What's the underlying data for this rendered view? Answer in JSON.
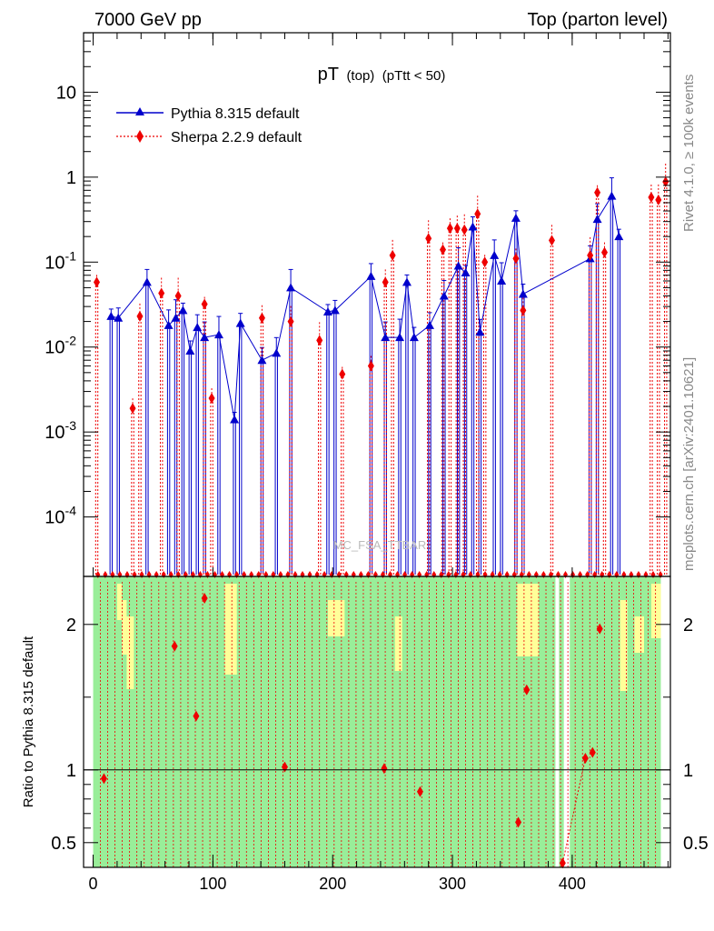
{
  "chart_data": {
    "type": "line",
    "header_left": "7000 GeV pp",
    "header_right": "Top (parton level)",
    "title_main": "pT",
    "title_sub": "(top)",
    "title_cut": "(pTtt < 50)",
    "watermark": "MC_FSA_TTBAR",
    "side_top": "Rivet 4.1.0, ≥ 100k events",
    "side_bottom": "mcplots.cern.ch [arXiv:2401.10621]",
    "ratio_ylabel": "Ratio to Pythia 8.315 default",
    "xlim": [
      -8,
      482
    ],
    "ylim_log10": [
      -4.7,
      1.7
    ],
    "ratio_ylim": [
      0.33,
      2.33
    ],
    "x_ticks": [
      "0",
      "100",
      "200",
      "300",
      "400"
    ],
    "y_ticks": [
      "10^-4",
      "10^-3",
      "10^-2",
      "10^-1",
      "1",
      "10"
    ],
    "ratio_ticks": [
      "0.5",
      "1",
      "2"
    ],
    "series": [
      {
        "name": "Pythia 8.315 default",
        "color": "#0000cc",
        "marker": "triangle",
        "points": [
          [
            15,
            0.023
          ],
          [
            21,
            0.022
          ],
          [
            45,
            0.058
          ],
          [
            63,
            0.018
          ],
          [
            69,
            0.022
          ],
          [
            75,
            0.027
          ],
          [
            81,
            0.009
          ],
          [
            87,
            0.017
          ],
          [
            93,
            0.013
          ],
          [
            105,
            0.014
          ],
          [
            118,
            0.0014
          ],
          [
            123,
            0.019
          ],
          [
            141,
            0.007
          ],
          [
            153,
            0.0085
          ],
          [
            165,
            0.05
          ],
          [
            196,
            0.026
          ],
          [
            202,
            0.027
          ],
          [
            232,
            0.068
          ],
          [
            244,
            0.013
          ],
          [
            256,
            0.013
          ],
          [
            262,
            0.058
          ],
          [
            268,
            0.013
          ],
          [
            281,
            0.018
          ],
          [
            293,
            0.04
          ],
          [
            305,
            0.09
          ],
          [
            311,
            0.075
          ],
          [
            317,
            0.26
          ],
          [
            323,
            0.015
          ],
          [
            335,
            0.12
          ],
          [
            341,
            0.06
          ],
          [
            353,
            0.33
          ],
          [
            359,
            0.042
          ],
          [
            415,
            0.11
          ],
          [
            421,
            0.32
          ],
          [
            433,
            0.6
          ],
          [
            439,
            0.2
          ]
        ]
      },
      {
        "name": "Sherpa 2.2.9 default",
        "color": "#ee0000",
        "marker": "diamond",
        "points": [
          [
            3,
            0.058
          ],
          [
            33,
            0.0019
          ],
          [
            39,
            0.023
          ],
          [
            57,
            0.043
          ],
          [
            71,
            0.04
          ],
          [
            93,
            0.032
          ],
          [
            99,
            0.0025
          ],
          [
            141,
            0.022
          ],
          [
            165,
            0.02
          ],
          [
            189,
            0.012
          ],
          [
            208,
            0.0048
          ],
          [
            232,
            0.006
          ],
          [
            244,
            0.058
          ],
          [
            250,
            0.12
          ],
          [
            280,
            0.19
          ],
          [
            292,
            0.14
          ],
          [
            298,
            0.25
          ],
          [
            304,
            0.25
          ],
          [
            310,
            0.24
          ],
          [
            321,
            0.37
          ],
          [
            327,
            0.1
          ],
          [
            353,
            0.11
          ],
          [
            359,
            0.027
          ],
          [
            383,
            0.18
          ],
          [
            415,
            0.12
          ],
          [
            421,
            0.66
          ],
          [
            427,
            0.13
          ],
          [
            466,
            0.58
          ],
          [
            472,
            0.54
          ],
          [
            478,
            0.88
          ]
        ]
      }
    ],
    "ratio_points": [
      [
        9,
        0.94
      ],
      [
        68,
        1.85
      ],
      [
        86,
        1.37
      ],
      [
        93,
        2.18
      ],
      [
        160,
        1.02
      ],
      [
        243,
        1.01
      ],
      [
        273,
        0.85
      ],
      [
        355,
        0.64
      ],
      [
        362,
        1.55
      ],
      [
        392,
        0.36
      ],
      [
        411,
        1.08
      ],
      [
        417,
        1.12
      ],
      [
        423,
        1.97
      ]
    ]
  }
}
